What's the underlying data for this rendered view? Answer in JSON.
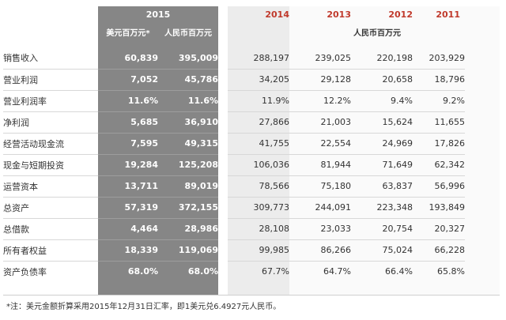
{
  "header": {
    "year_2015": "2015",
    "unit_usd": "美元百万元*",
    "unit_rmb": "人民币百万元",
    "years_prev": [
      "2014",
      "2013",
      "2012",
      "2011"
    ],
    "unit_rmb_prev": "人民币百万元"
  },
  "rows": [
    {
      "label": "销售收入",
      "usd_2015": "60,839",
      "rmb_2015": "395,009",
      "y2014": "288,197",
      "y2013": "239,025",
      "y2012": "220,198",
      "y2011": "203,929"
    },
    {
      "label": "营业利润",
      "usd_2015": "7,052",
      "rmb_2015": "45,786",
      "y2014": "34,205",
      "y2013": "29,128",
      "y2012": "20,658",
      "y2011": "18,796"
    },
    {
      "label": "营业利润率",
      "usd_2015": "11.6%",
      "rmb_2015": "11.6%",
      "y2014": "11.9%",
      "y2013": "12.2%",
      "y2012": "9.4%",
      "y2011": "9.2%"
    },
    {
      "label": "净利润",
      "usd_2015": "5,685",
      "rmb_2015": "36,910",
      "y2014": "27,866",
      "y2013": "21,003",
      "y2012": "15,624",
      "y2011": "11,655"
    },
    {
      "label": "经营活动现金流",
      "usd_2015": "7,595",
      "rmb_2015": "49,315",
      "y2014": "41,755",
      "y2013": "22,554",
      "y2012": "24,969",
      "y2011": "17,826"
    },
    {
      "label": "现金与短期投资",
      "usd_2015": "19,284",
      "rmb_2015": "125,208",
      "y2014": "106,036",
      "y2013": "81,944",
      "y2012": "71,649",
      "y2011": "62,342"
    },
    {
      "label": "运营资本",
      "usd_2015": "13,711",
      "rmb_2015": "89,019",
      "y2014": "78,566",
      "y2013": "75,180",
      "y2012": "63,837",
      "y2011": "56,996"
    },
    {
      "label": "总资产",
      "usd_2015": "57,319",
      "rmb_2015": "372,155",
      "y2014": "309,773",
      "y2013": "244,091",
      "y2012": "223,348",
      "y2011": "193,849"
    },
    {
      "label": "总借款",
      "usd_2015": "4,464",
      "rmb_2015": "28,986",
      "y2014": "28,108",
      "y2013": "23,033",
      "y2012": "20,754",
      "y2011": "20,327"
    },
    {
      "label": "所有者权益",
      "usd_2015": "18,339",
      "rmb_2015": "119,069",
      "y2014": "99,985",
      "y2013": "86,266",
      "y2012": "75,024",
      "y2011": "66,228"
    },
    {
      "label": "资产负债率",
      "usd_2015": "68.0%",
      "rmb_2015": "68.0%",
      "y2014": "67.7%",
      "y2013": "64.7%",
      "y2012": "66.4%",
      "y2011": "65.8%"
    }
  ],
  "footnote": "*注：美元金额折算采用2015年12月31日汇率，即1美元兑6.4927元人民币。"
}
